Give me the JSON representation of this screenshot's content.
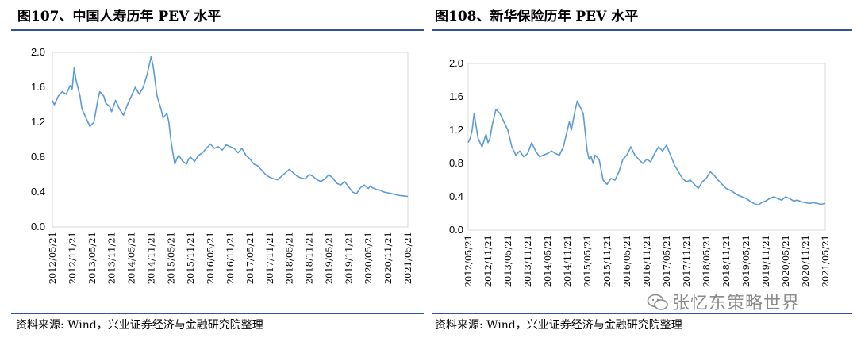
{
  "figures": [
    {
      "title": "图107、中国人寿历年 PEV 水平",
      "source": "资料来源: Wind，兴业证券经济与金融研究院整理"
    },
    {
      "title": "图108、新华保险历年 PEV 水平",
      "source": "资料来源: Wind，兴业证券经济与金融研究院整理"
    }
  ],
  "watermark": {
    "text": "张忆东策略世界",
    "icon": "wechat-icon"
  },
  "chart_data": [
    {
      "type": "line",
      "title": "图107、中国人寿历年 PEV 水平",
      "xlabel": "",
      "ylabel": "",
      "ylim": [
        0,
        2.0
      ],
      "yticks": [
        "0.0",
        "0.4",
        "0.8",
        "1.2",
        "1.6",
        "2.0"
      ],
      "xticks": [
        "2012/05/21",
        "2012/11/21",
        "2013/05/21",
        "2013/11/21",
        "2014/05/21",
        "2014/11/21",
        "2015/05/21",
        "2015/11/21",
        "2016/05/21",
        "2016/11/21",
        "2017/05/21",
        "2017/11/21",
        "2018/05/21",
        "2018/11/21",
        "2019/05/21",
        "2019/11/21",
        "2020/05/21",
        "2020/11/21",
        "2021/05/21"
      ],
      "series": [
        {
          "name": "中国人寿 PEV",
          "color": "#5b9bd5",
          "x": [
            0,
            0.1,
            0.3,
            0.5,
            0.7,
            0.9,
            1.0,
            1.1,
            1.2,
            1.4,
            1.5,
            1.7,
            1.9,
            2.1,
            2.3,
            2.4,
            2.6,
            2.7,
            2.9,
            3.0,
            3.2,
            3.4,
            3.6,
            3.8,
            4.0,
            4.2,
            4.4,
            4.6,
            4.8,
            5.0,
            5.1,
            5.3,
            5.5,
            5.6,
            5.8,
            5.9,
            6.0,
            6.1,
            6.2,
            6.3,
            6.4,
            6.6,
            6.8,
            6.9,
            7.0,
            7.2,
            7.4,
            7.6,
            7.8,
            8.0,
            8.2,
            8.4,
            8.6,
            8.8,
            9.0,
            9.2,
            9.4,
            9.6,
            9.8,
            10.0,
            10.2,
            10.4,
            10.6,
            10.8,
            11.0,
            11.2,
            11.4,
            11.6,
            11.8,
            12.0,
            12.2,
            12.4,
            12.6,
            12.8,
            13.0,
            13.2,
            13.4,
            13.6,
            13.8,
            14.0,
            14.2,
            14.4,
            14.6,
            14.8,
            15.0,
            15.2,
            15.4,
            15.6,
            15.8,
            16.0,
            16.1,
            16.2,
            16.4,
            16.6,
            16.8,
            17.0,
            17.2,
            17.4,
            17.6,
            17.8,
            18.0
          ],
          "values": [
            1.45,
            1.4,
            1.5,
            1.55,
            1.52,
            1.62,
            1.58,
            1.82,
            1.68,
            1.5,
            1.35,
            1.25,
            1.15,
            1.2,
            1.45,
            1.55,
            1.5,
            1.42,
            1.38,
            1.32,
            1.45,
            1.35,
            1.28,
            1.4,
            1.5,
            1.6,
            1.52,
            1.6,
            1.75,
            1.95,
            1.85,
            1.5,
            1.35,
            1.25,
            1.3,
            1.2,
            1.0,
            0.85,
            0.72,
            0.78,
            0.82,
            0.75,
            0.72,
            0.78,
            0.8,
            0.75,
            0.82,
            0.85,
            0.9,
            0.95,
            0.9,
            0.92,
            0.88,
            0.94,
            0.92,
            0.9,
            0.85,
            0.9,
            0.82,
            0.78,
            0.72,
            0.7,
            0.65,
            0.6,
            0.57,
            0.55,
            0.54,
            0.58,
            0.62,
            0.66,
            0.62,
            0.58,
            0.56,
            0.55,
            0.6,
            0.58,
            0.54,
            0.52,
            0.55,
            0.6,
            0.56,
            0.5,
            0.48,
            0.52,
            0.46,
            0.4,
            0.38,
            0.45,
            0.48,
            0.44,
            0.47,
            0.45,
            0.43,
            0.42,
            0.4,
            0.39,
            0.38,
            0.37,
            0.36,
            0.355,
            0.35
          ]
        }
      ]
    },
    {
      "type": "line",
      "title": "图108、新华保险历年 PEV 水平",
      "xlabel": "",
      "ylabel": "",
      "ylim": [
        0,
        2.0
      ],
      "yticks": [
        "0.0",
        "0.4",
        "0.8",
        "1.2",
        "1.6",
        "2.0"
      ],
      "xticks": [
        "2012/05/21",
        "2012/11/21",
        "2013/05/21",
        "2013/11/21",
        "2014/05/21",
        "2014/11/21",
        "2015/05/21",
        "2015/11/21",
        "2016/05/21",
        "2016/11/21",
        "2017/05/21",
        "2017/11/21",
        "2018/05/21",
        "2018/11/21",
        "2019/05/21",
        "2019/11/21",
        "2020/05/21",
        "2020/11/21",
        "2021/05/21"
      ],
      "series": [
        {
          "name": "新华保险 PEV",
          "color": "#5b9bd5",
          "x": [
            0,
            0.1,
            0.2,
            0.3,
            0.5,
            0.7,
            0.9,
            1.0,
            1.1,
            1.2,
            1.4,
            1.6,
            1.8,
            2.0,
            2.2,
            2.4,
            2.6,
            2.8,
            3.0,
            3.2,
            3.4,
            3.6,
            3.8,
            4.0,
            4.2,
            4.4,
            4.6,
            4.8,
            5.0,
            5.1,
            5.2,
            5.4,
            5.5,
            5.6,
            5.8,
            6.0,
            6.1,
            6.2,
            6.3,
            6.4,
            6.6,
            6.8,
            7.0,
            7.2,
            7.4,
            7.6,
            7.8,
            8.0,
            8.2,
            8.4,
            8.6,
            8.8,
            9.0,
            9.2,
            9.4,
            9.6,
            9.8,
            10.0,
            10.2,
            10.4,
            10.6,
            10.8,
            11.0,
            11.2,
            11.4,
            11.6,
            11.8,
            12.0,
            12.2,
            12.4,
            12.6,
            12.8,
            13.0,
            13.2,
            13.4,
            13.6,
            13.8,
            14.0,
            14.2,
            14.4,
            14.6,
            14.8,
            15.0,
            15.2,
            15.4,
            15.6,
            15.8,
            16.0,
            16.2,
            16.4,
            16.6,
            16.8,
            17.0,
            17.2,
            17.4,
            17.6,
            17.8,
            18.0
          ],
          "values": [
            1.05,
            1.1,
            1.2,
            1.4,
            1.1,
            1.0,
            1.15,
            1.05,
            1.1,
            1.25,
            1.45,
            1.4,
            1.3,
            1.2,
            1.0,
            0.9,
            0.95,
            0.88,
            0.92,
            1.05,
            0.95,
            0.88,
            0.9,
            0.92,
            0.95,
            0.92,
            0.9,
            1.0,
            1.2,
            1.3,
            1.2,
            1.45,
            1.55,
            1.5,
            1.4,
            0.95,
            0.85,
            0.88,
            0.8,
            0.9,
            0.85,
            0.6,
            0.55,
            0.62,
            0.6,
            0.7,
            0.85,
            0.9,
            1.0,
            0.9,
            0.85,
            0.8,
            0.85,
            0.82,
            0.92,
            1.0,
            0.95,
            1.02,
            0.9,
            0.78,
            0.7,
            0.62,
            0.58,
            0.6,
            0.55,
            0.5,
            0.58,
            0.62,
            0.7,
            0.66,
            0.6,
            0.55,
            0.5,
            0.48,
            0.45,
            0.42,
            0.4,
            0.38,
            0.35,
            0.32,
            0.3,
            0.33,
            0.35,
            0.38,
            0.4,
            0.38,
            0.36,
            0.4,
            0.38,
            0.35,
            0.36,
            0.34,
            0.33,
            0.32,
            0.33,
            0.32,
            0.31,
            0.32
          ]
        }
      ]
    }
  ]
}
